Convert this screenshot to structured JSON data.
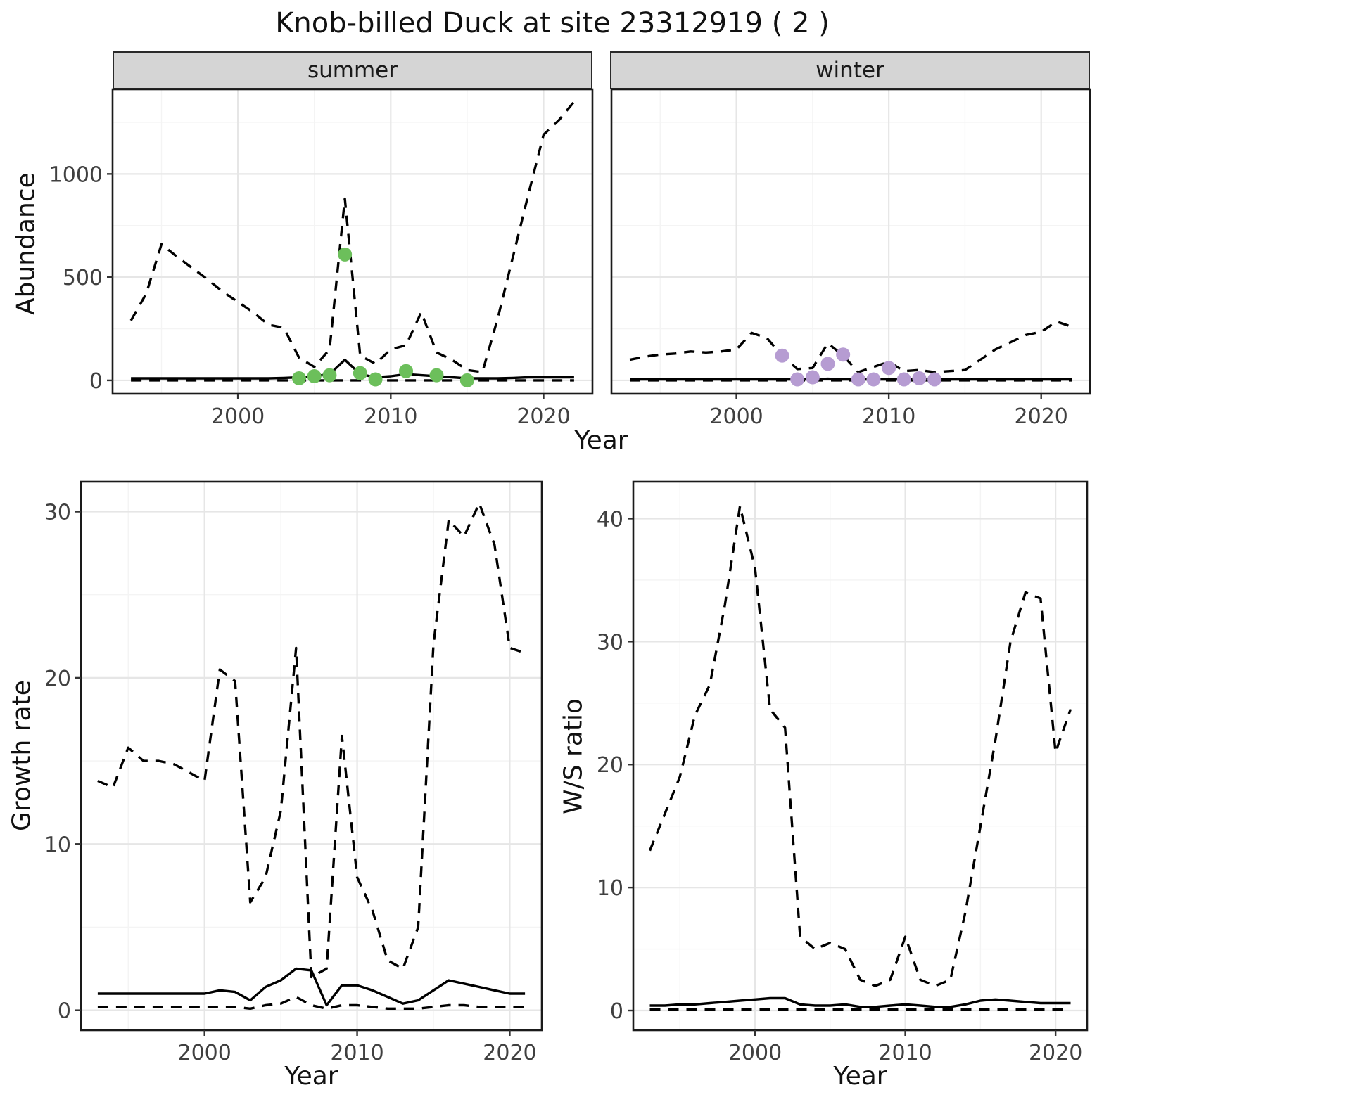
{
  "title": "Knob-billed Duck at site 23312919 ( 2 )",
  "facets": [
    {
      "label": "summer"
    },
    {
      "label": "winter"
    }
  ],
  "axes": {
    "abundance_label": "Abundance",
    "growth_label": "Growth rate",
    "ws_label": "W/S ratio",
    "year_label": "Year"
  },
  "colors": {
    "line": "#000000",
    "summer_points": "#6cbf5b",
    "winter_points": "#b69cd2",
    "strip_bg": "#d5d5d5",
    "grid_major": "#e6e6e6",
    "grid_minor": "#f4f4f4"
  },
  "chart_data": [
    {
      "id": "summer-abundance",
      "type": "line",
      "title": "summer",
      "xlabel": "Year",
      "ylabel": "Abundance",
      "xlim": [
        1991.8,
        2023.2
      ],
      "ylim": [
        -65,
        1410
      ],
      "xticks": [
        2000,
        2010,
        2020
      ],
      "yticks": [
        0,
        500,
        1000
      ],
      "grid": true,
      "years": [
        1993,
        1994,
        1995,
        1996,
        1997,
        1998,
        1999,
        2000,
        2001,
        2002,
        2003,
        2004,
        2005,
        2006,
        2007,
        2008,
        2009,
        2010,
        2011,
        2012,
        2013,
        2014,
        2015,
        2016,
        2017,
        2018,
        2019,
        2020,
        2021,
        2022
      ],
      "series": [
        {
          "name": "upper_ci",
          "style": "dashed",
          "values": [
            290,
            420,
            660,
            600,
            545,
            490,
            430,
            380,
            330,
            270,
            255,
            110,
            65,
            150,
            880,
            120,
            80,
            150,
            170,
            330,
            135,
            100,
            50,
            40,
            300,
            600,
            900,
            1190,
            1260,
            1350
          ]
        },
        {
          "name": "median",
          "style": "solid",
          "values": [
            10,
            10,
            10,
            10,
            10,
            10,
            10,
            10,
            10,
            10,
            12,
            15,
            20,
            30,
            100,
            30,
            15,
            20,
            30,
            25,
            20,
            15,
            10,
            10,
            10,
            12,
            15,
            15,
            15,
            15
          ]
        },
        {
          "name": "lower_ci",
          "style": "dashed",
          "values": [
            0,
            0,
            0,
            0,
            0,
            0,
            0,
            0,
            0,
            0,
            0,
            0,
            0,
            0,
            0,
            0,
            0,
            0,
            0,
            0,
            0,
            0,
            0,
            0,
            0,
            0,
            0,
            0,
            0,
            0
          ]
        }
      ],
      "points": {
        "name": "observed_counts",
        "color_key": "summer_points",
        "x": [
          2004,
          2005,
          2006,
          2007,
          2008,
          2009,
          2011,
          2013,
          2015
        ],
        "y": [
          10,
          20,
          25,
          610,
          35,
          5,
          45,
          25,
          0
        ]
      }
    },
    {
      "id": "winter-abundance",
      "type": "line",
      "title": "winter",
      "xlabel": "Year",
      "ylabel": "Abundance",
      "xlim": [
        1991.8,
        2023.2
      ],
      "ylim": [
        -65,
        1410
      ],
      "xticks": [
        2000,
        2010,
        2020
      ],
      "yticks": [
        0,
        500,
        1000
      ],
      "grid": true,
      "years": [
        1993,
        1994,
        1995,
        1996,
        1997,
        1998,
        1999,
        2000,
        2001,
        2002,
        2003,
        2004,
        2005,
        2006,
        2007,
        2008,
        2009,
        2010,
        2011,
        2012,
        2013,
        2014,
        2015,
        2016,
        2017,
        2018,
        2019,
        2020,
        2021,
        2022
      ],
      "series": [
        {
          "name": "upper_ci",
          "style": "dashed",
          "values": [
            100,
            115,
            125,
            130,
            140,
            135,
            140,
            150,
            230,
            205,
            120,
            55,
            60,
            180,
            120,
            40,
            65,
            90,
            45,
            50,
            40,
            45,
            50,
            100,
            150,
            185,
            220,
            235,
            285,
            260
          ]
        },
        {
          "name": "median",
          "style": "solid",
          "values": [
            5,
            5,
            5,
            5,
            5,
            5,
            5,
            5,
            5,
            5,
            5,
            5,
            5,
            8,
            5,
            5,
            5,
            5,
            5,
            5,
            5,
            5,
            5,
            5,
            5,
            5,
            5,
            5,
            5,
            5
          ]
        },
        {
          "name": "lower_ci",
          "style": "dashed",
          "values": [
            0,
            0,
            0,
            0,
            0,
            0,
            0,
            0,
            0,
            0,
            0,
            0,
            0,
            0,
            0,
            0,
            0,
            0,
            0,
            0,
            0,
            0,
            0,
            0,
            0,
            0,
            0,
            0,
            0,
            0
          ]
        }
      ],
      "points": {
        "name": "observed_counts",
        "color_key": "winter_points",
        "x": [
          2003,
          2004,
          2005,
          2006,
          2007,
          2008,
          2009,
          2010,
          2011,
          2012,
          2013
        ],
        "y": [
          120,
          5,
          15,
          80,
          125,
          5,
          5,
          60,
          5,
          10,
          5
        ]
      }
    },
    {
      "id": "growth-rate",
      "type": "line",
      "title": "",
      "xlabel": "Year",
      "ylabel": "Growth rate",
      "xlim": [
        1991.9,
        2022.1
      ],
      "ylim": [
        -1.2,
        31.8
      ],
      "xticks": [
        2000,
        2010,
        2020
      ],
      "yticks": [
        0,
        10,
        20,
        30
      ],
      "grid": true,
      "years": [
        1993,
        1994,
        1995,
        1996,
        1997,
        1998,
        1999,
        2000,
        2001,
        2002,
        2003,
        2004,
        2005,
        2006,
        2007,
        2008,
        2009,
        2010,
        2011,
        2012,
        2013,
        2014,
        2015,
        2016,
        2017,
        2018,
        2019,
        2020,
        2021
      ],
      "series": [
        {
          "name": "upper_ci",
          "style": "dashed",
          "values": [
            13.8,
            13.4,
            15.8,
            15.0,
            15.0,
            14.8,
            14.3,
            13.8,
            20.5,
            19.8,
            6.5,
            8.0,
            12.0,
            21.8,
            2.0,
            2.5,
            16.5,
            8.0,
            6.0,
            3.0,
            2.5,
            5.0,
            22.0,
            29.5,
            28.5,
            30.5,
            28.0,
            21.8,
            21.5
          ]
        },
        {
          "name": "median",
          "style": "solid",
          "values": [
            1.0,
            1.0,
            1.0,
            1.0,
            1.0,
            1.0,
            1.0,
            1.0,
            1.2,
            1.1,
            0.6,
            1.4,
            1.8,
            2.5,
            2.4,
            0.3,
            1.5,
            1.5,
            1.2,
            0.8,
            0.4,
            0.6,
            1.2,
            1.8,
            1.6,
            1.4,
            1.2,
            1.0,
            1.0
          ]
        },
        {
          "name": "lower_ci",
          "style": "dashed",
          "values": [
            0.2,
            0.2,
            0.2,
            0.2,
            0.2,
            0.2,
            0.2,
            0.2,
            0.2,
            0.2,
            0.1,
            0.3,
            0.4,
            0.8,
            0.3,
            0.1,
            0.3,
            0.3,
            0.2,
            0.1,
            0.1,
            0.1,
            0.2,
            0.3,
            0.3,
            0.2,
            0.2,
            0.2,
            0.2
          ]
        }
      ]
    },
    {
      "id": "ws-ratio",
      "type": "line",
      "title": "",
      "xlabel": "Year",
      "ylabel": "W/S ratio",
      "xlim": [
        1991.9,
        2022.1
      ],
      "ylim": [
        -1.6,
        43
      ],
      "xticks": [
        2000,
        2010,
        2020
      ],
      "yticks": [
        0,
        10,
        20,
        30,
        40
      ],
      "grid": true,
      "years": [
        1993,
        1994,
        1995,
        1996,
        1997,
        1998,
        1999,
        2000,
        2001,
        2002,
        2003,
        2004,
        2005,
        2006,
        2007,
        2008,
        2009,
        2010,
        2011,
        2012,
        2013,
        2014,
        2015,
        2016,
        2017,
        2018,
        2019,
        2020,
        2021
      ],
      "series": [
        {
          "name": "upper_ci",
          "style": "dashed",
          "values": [
            13.0,
            16.0,
            19.0,
            24.0,
            26.5,
            33.0,
            41.0,
            36.0,
            24.5,
            23.0,
            6.0,
            5.0,
            5.5,
            5.0,
            2.5,
            2.0,
            2.5,
            6.0,
            2.5,
            2.0,
            2.5,
            8.0,
            15.0,
            22.0,
            30.0,
            34.0,
            33.5,
            21.0,
            24.5
          ]
        },
        {
          "name": "median",
          "style": "solid",
          "values": [
            0.4,
            0.4,
            0.5,
            0.5,
            0.6,
            0.7,
            0.8,
            0.9,
            1.0,
            1.0,
            0.5,
            0.4,
            0.4,
            0.5,
            0.3,
            0.3,
            0.4,
            0.5,
            0.4,
            0.3,
            0.3,
            0.5,
            0.8,
            0.9,
            0.8,
            0.7,
            0.6,
            0.6,
            0.6
          ]
        },
        {
          "name": "lower_ci",
          "style": "dashed",
          "values": [
            0.1,
            0.1,
            0.1,
            0.1,
            0.1,
            0.1,
            0.1,
            0.1,
            0.1,
            0.1,
            0.1,
            0.1,
            0.1,
            0.1,
            0.1,
            0.1,
            0.1,
            0.1,
            0.1,
            0.1,
            0.1,
            0.1,
            0.1,
            0.1,
            0.1,
            0.1,
            0.1,
            0.1,
            0.1
          ]
        }
      ]
    }
  ]
}
